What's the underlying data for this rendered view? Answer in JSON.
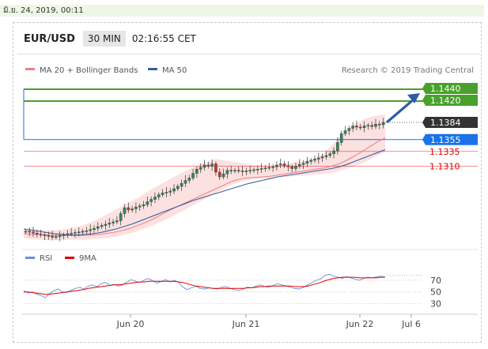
{
  "date_stamp": "มิ.ย. 24, 2019, 00:11",
  "header": {
    "symbol": "EUR/USD",
    "timeframe": "30 MIN",
    "clock": "02:16:55 CET"
  },
  "legend": {
    "bollinger": {
      "label": "MA 20 + Bollinger Bands",
      "color": "#f08080"
    },
    "ma50": {
      "label": "MA 50",
      "color": "#3a5f9f"
    },
    "credit": "Research © 2019 Trading Central"
  },
  "rsi_legend": {
    "rsi": {
      "label": "RSI",
      "color": "#6a8fd8"
    },
    "ma9": {
      "label": "9MA",
      "color": "#e00000"
    }
  },
  "levels": [
    {
      "label": "1.1440",
      "value": 1.144,
      "style": "resistance",
      "color": "#4aa02c"
    },
    {
      "label": "1.1420",
      "value": 1.142,
      "style": "resistance",
      "color": "#4aa02c"
    },
    {
      "label": "1.1384",
      "value": 1.1384,
      "style": "current",
      "color": "#333333"
    },
    {
      "label": "1.1355",
      "value": 1.1355,
      "style": "pivot",
      "color": "#1a73e8"
    },
    {
      "label": "1.1335",
      "value": 1.1335,
      "style": "support",
      "color": "#e00000"
    },
    {
      "label": "1.1310",
      "value": 1.131,
      "style": "support",
      "color": "#e00000"
    }
  ],
  "x_ticks": [
    "Jun 20",
    "Jun 21",
    "Jun 22",
    "Jul 6"
  ],
  "rsi_ticks": [
    "70",
    "50",
    "30"
  ],
  "chart_data": {
    "type": "line",
    "title": "EUR/USD 30 MIN",
    "y_range": [
      1.118,
      1.146
    ],
    "price_close": [
      1.12,
      1.1199,
      1.1197,
      1.1195,
      1.1194,
      1.1193,
      1.1192,
      1.119,
      1.1191,
      1.1193,
      1.1194,
      1.1196,
      1.1197,
      1.1198,
      1.1199,
      1.12,
      1.1201,
      1.1203,
      1.1205,
      1.1208,
      1.121,
      1.1212,
      1.1214,
      1.1216,
      1.1218,
      1.123,
      1.124,
      1.1236,
      1.1238,
      1.1241,
      1.1243,
      1.1245,
      1.125,
      1.1254,
      1.1258,
      1.1262,
      1.1265,
      1.1266,
      1.1268,
      1.1272,
      1.1276,
      1.1281,
      1.1286,
      1.129,
      1.1298,
      1.1305,
      1.1308,
      1.1312,
      1.131,
      1.1314,
      1.13,
      1.1292,
      1.1297,
      1.1303,
      1.1303,
      1.1303,
      1.1302,
      1.1301,
      1.1302,
      1.1303,
      1.1304,
      1.1305,
      1.1306,
      1.1307,
      1.1308,
      1.1309,
      1.1312,
      1.1314,
      1.1311,
      1.1309,
      1.1306,
      1.131,
      1.1313,
      1.1315,
      1.1318,
      1.132,
      1.1322,
      1.1324,
      1.1326,
      1.1328,
      1.1331,
      1.1336,
      1.135,
      1.1365,
      1.137,
      1.1374,
      1.1378,
      1.1376,
      1.1375,
      1.1378,
      1.1379,
      1.1377,
      1.1381,
      1.138,
      1.1384
    ],
    "ma20": [
      1.1196,
      1.1195,
      1.1195,
      1.1194,
      1.1193,
      1.1193,
      1.1193,
      1.1193,
      1.1193,
      1.1194,
      1.1195,
      1.1197,
      1.1199,
      1.1202,
      1.1206,
      1.1211,
      1.1216,
      1.1222,
      1.1229,
      1.1236,
      1.1242,
      1.1248,
      1.1254,
      1.126,
      1.1266,
      1.1272,
      1.1278,
      1.1284,
      1.1288,
      1.129,
      1.1291,
      1.1292,
      1.1293,
      1.1295,
      1.1297,
      1.1299,
      1.1301,
      1.1303,
      1.1305,
      1.1307,
      1.131,
      1.1314,
      1.132,
      1.1327,
      1.1335,
      1.1343,
      1.1351,
      1.1358
    ],
    "ma50": [
      1.1204,
      1.1202,
      1.12,
      1.1198,
      1.1196,
      1.1195,
      1.1194,
      1.1194,
      1.1195,
      1.1196,
      1.1198,
      1.1201,
      1.1204,
      1.1208,
      1.1212,
      1.1217,
      1.1222,
      1.1227,
      1.1232,
      1.1237,
      1.1242,
      1.1247,
      1.1252,
      1.1256,
      1.126,
      1.1264,
      1.1268,
      1.1272,
      1.1276,
      1.128,
      1.1283,
      1.1286,
      1.1289,
      1.1292,
      1.1294,
      1.1296,
      1.1298,
      1.13,
      1.1302,
      1.1304,
      1.1306,
      1.1309,
      1.1313,
      1.1318,
      1.1323,
      1.1328,
      1.1333,
      1.1338
    ],
    "bb_upper": [
      1.1205,
      1.1204,
      1.1203,
      1.1202,
      1.1202,
      1.1203,
      1.1205,
      1.1208,
      1.1212,
      1.1217,
      1.1223,
      1.123,
      1.1237,
      1.1244,
      1.1251,
      1.1258,
      1.1266,
      1.1274,
      1.1281,
      1.1288,
      1.1295,
      1.1302,
      1.1308,
      1.1314,
      1.1318,
      1.1322,
      1.132,
      1.1318,
      1.1316,
      1.1314,
      1.1312,
      1.1311,
      1.131,
      1.1311,
      1.1313,
      1.1316,
      1.1318,
      1.132,
      1.1324,
      1.1332,
      1.1345,
      1.1358,
      1.137,
      1.138,
      1.1388,
      1.1393,
      1.1396,
      1.1397
    ],
    "bb_lower": [
      1.1188,
      1.1187,
      1.1186,
      1.1185,
      1.1185,
      1.1185,
      1.1186,
      1.1186,
      1.1186,
      1.1187,
      1.1188,
      1.1189,
      1.1191,
      1.1194,
      1.1197,
      1.1201,
      1.1206,
      1.1211,
      1.1217,
      1.1223,
      1.123,
      1.1237,
      1.1244,
      1.1251,
      1.1258,
      1.1265,
      1.1272,
      1.1278,
      1.1283,
      1.1286,
      1.1288,
      1.1289,
      1.129,
      1.1291,
      1.1292,
      1.1293,
      1.1294,
      1.1295,
      1.1296,
      1.1297,
      1.1298,
      1.1302,
      1.1306,
      1.131,
      1.1315,
      1.1321,
      1.1328,
      1.1334
    ],
    "rsi_range": [
      20,
      90
    ],
    "rsi": [
      52,
      48,
      50,
      46,
      44,
      40,
      47,
      52,
      55,
      50,
      49,
      53,
      56,
      58,
      55,
      60,
      62,
      59,
      64,
      66,
      61,
      63,
      60,
      62,
      67,
      71,
      68,
      66,
      70,
      73,
      69,
      65,
      68,
      71,
      67,
      70,
      66,
      58,
      54,
      57,
      60,
      56,
      55,
      57,
      56,
      55,
      58,
      59,
      56,
      54,
      52,
      55,
      58,
      57,
      60,
      62,
      59,
      58,
      61,
      64,
      62,
      60,
      58,
      56,
      55,
      58,
      62,
      66,
      70,
      72,
      78,
      80,
      77,
      75,
      73,
      76,
      74,
      72,
      70,
      73,
      75,
      74,
      76,
      77,
      75
    ],
    "rsi_ma": [
      50,
      50,
      49,
      48,
      47,
      46,
      46,
      47,
      48,
      49,
      50,
      51,
      52,
      53,
      54,
      56,
      57,
      58,
      59,
      60,
      61,
      62,
      62,
      63,
      64,
      65,
      66,
      67,
      67,
      68,
      68,
      68,
      68,
      68,
      68,
      68,
      67,
      66,
      64,
      62,
      60,
      59,
      58,
      57,
      56,
      56,
      56,
      56,
      56,
      56,
      56,
      56,
      57,
      57,
      58,
      59,
      59,
      60,
      60,
      60,
      60,
      60,
      60,
      59,
      59,
      59,
      60,
      62,
      64,
      66,
      69,
      71,
      73,
      74,
      75,
      75,
      75,
      75,
      74,
      74,
      74,
      74,
      74,
      75,
      75
    ],
    "grid": false,
    "legend_position": "top-left"
  }
}
